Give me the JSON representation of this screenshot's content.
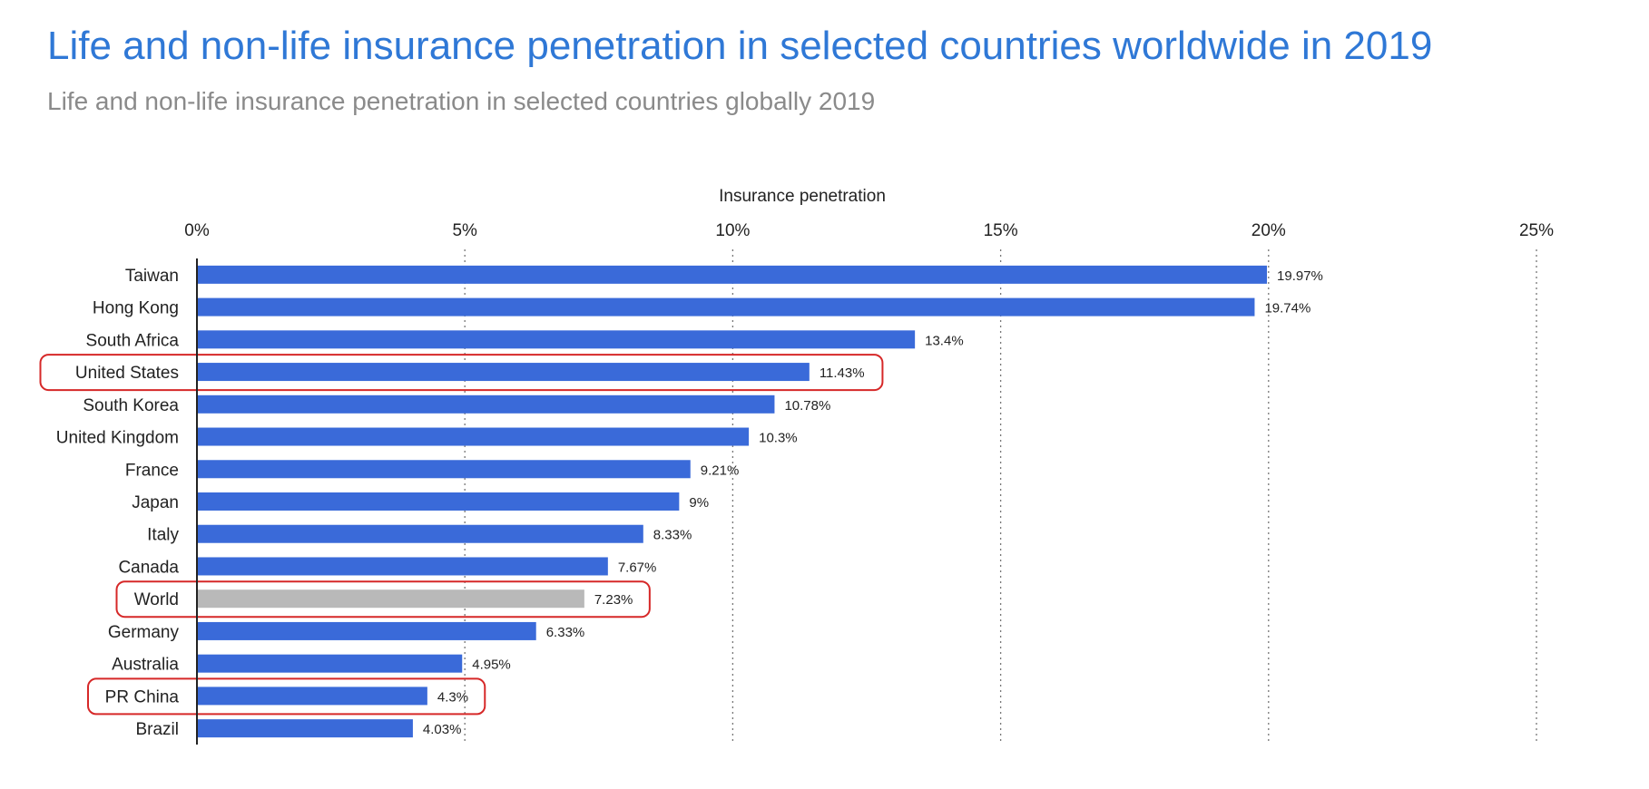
{
  "header": {
    "title": "Life and non-life insurance penetration in selected countries worldwide in 2019",
    "subtitle": "Life and non-life insurance penetration in selected countries globally 2019"
  },
  "colors": {
    "bar": "#3a6ad9",
    "world_bar": "#b9b9b9",
    "highlight": "#d62828"
  },
  "chart_data": {
    "type": "bar",
    "orientation": "horizontal",
    "xlabel": "Insurance penetration",
    "xlim": [
      0,
      25
    ],
    "ticks": [
      0,
      5,
      10,
      15,
      20,
      25
    ],
    "tick_labels": [
      "0%",
      "5%",
      "10%",
      "15%",
      "20%",
      "25%"
    ],
    "grid": true,
    "categories": [
      "Taiwan",
      "Hong Kong",
      "South Africa",
      "United States",
      "South Korea",
      "United Kingdom",
      "France",
      "Japan",
      "Italy",
      "Canada",
      "World",
      "Germany",
      "Australia",
      "PR China",
      "Brazil"
    ],
    "values": [
      19.97,
      19.74,
      13.4,
      11.43,
      10.78,
      10.3,
      9.21,
      9,
      8.33,
      7.67,
      7.23,
      6.33,
      4.95,
      4.3,
      4.03
    ],
    "value_labels": [
      "19.97%",
      "19.74%",
      "13.4%",
      "11.43%",
      "10.78%",
      "10.3%",
      "9.21%",
      "9%",
      "8.33%",
      "7.67%",
      "7.23%",
      "6.33%",
      "4.95%",
      "4.3%",
      "4.03%"
    ],
    "gray_categories": [
      "World"
    ],
    "highlighted_categories": [
      "United States",
      "World",
      "PR China"
    ]
  }
}
